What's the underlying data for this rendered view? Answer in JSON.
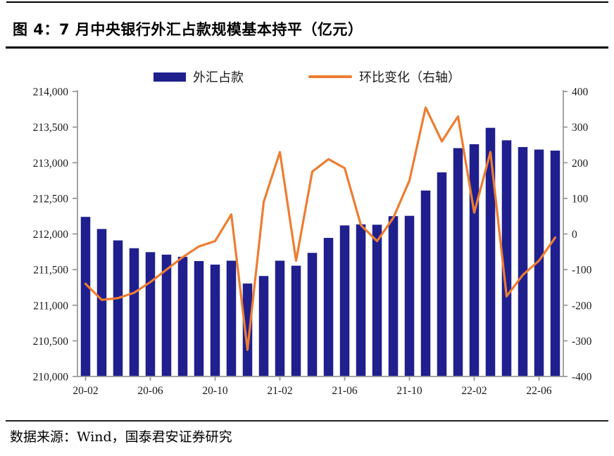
{
  "figure": {
    "title": "图 4：7 月中央银行外汇占款规模基本持平（亿元）",
    "source": "数据来源：Wind，国泰君安证券研究"
  },
  "legend": {
    "bar_label": "外汇占款",
    "line_label": "环比变化（右轴）"
  },
  "colors": {
    "bar": "#1F1F8E",
    "line": "#ED7D31",
    "axis": "#9a9a9a",
    "tick_text": "#1a1a1a"
  },
  "chart_data": {
    "type": "bar",
    "subtype": "bar+line dual axis",
    "title": "7 月中央银行外汇占款规模基本持平（亿元）",
    "grid": false,
    "legend_position": "top",
    "categories": [
      "20-02",
      "20-03",
      "20-04",
      "20-05",
      "20-06",
      "20-07",
      "20-08",
      "20-09",
      "20-10",
      "20-11",
      "20-12",
      "21-01",
      "21-02",
      "21-03",
      "21-04",
      "21-05",
      "21-06",
      "21-07",
      "21-08",
      "21-09",
      "21-10",
      "21-11",
      "21-12",
      "22-01",
      "22-02",
      "22-03",
      "22-04",
      "22-05",
      "22-06",
      "22-07"
    ],
    "x_tick_labels": [
      "20-02",
      "20-06",
      "20-10",
      "21-02",
      "21-06",
      "21-10",
      "22-02",
      "22-06"
    ],
    "series": [
      {
        "name": "外汇占款",
        "type": "bar",
        "axis": "left",
        "color": "#1F1F8E",
        "values": [
          212240,
          212070,
          211910,
          211800,
          211745,
          211710,
          211680,
          211620,
          211570,
          211625,
          211305,
          211410,
          211625,
          211555,
          211735,
          211945,
          212120,
          212135,
          212130,
          212250,
          212255,
          212610,
          212865,
          213205,
          213260,
          213490,
          213315,
          213220,
          213185,
          213170
        ]
      },
      {
        "name": "环比变化（右轴）",
        "type": "line",
        "axis": "right",
        "color": "#ED7D31",
        "values": [
          -140,
          -185,
          -180,
          -165,
          -135,
          -100,
          -65,
          -35,
          -20,
          55,
          -325,
          90,
          230,
          -75,
          175,
          210,
          185,
          25,
          -20,
          45,
          150,
          355,
          260,
          330,
          60,
          230,
          -175,
          -115,
          -75,
          -10
        ]
      }
    ],
    "left_axis": {
      "min": 210000,
      "max": 214000,
      "step": 500,
      "tick_labels": [
        "214,000",
        "213,500",
        "213,000",
        "212,500",
        "212,000",
        "211,500",
        "211,000",
        "210,500",
        "210,000"
      ]
    },
    "right_axis": {
      "min": -400,
      "max": 400,
      "step": 100,
      "tick_labels": [
        "400",
        "300",
        "200",
        "100",
        "0",
        "-100",
        "-200",
        "-300",
        "-400"
      ]
    }
  }
}
